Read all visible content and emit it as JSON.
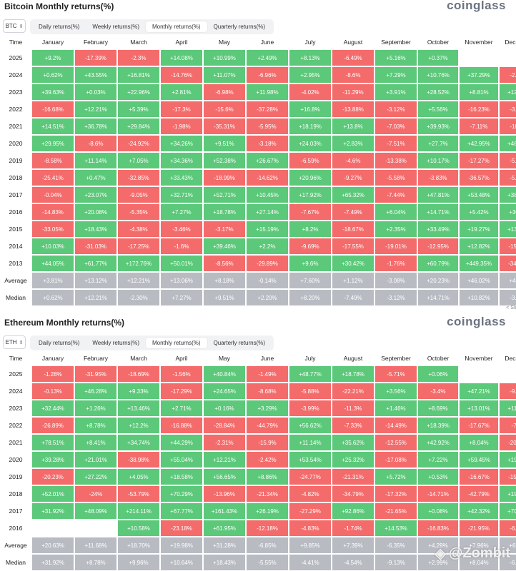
{
  "btc": {
    "title": "Bitcoin Monthly returns(%)",
    "brand": "coinglass",
    "coin": "BTC",
    "tabs": [
      "Daily returns(%)",
      "Weekly returns(%)",
      "Monthly returns(%)",
      "Quarterly returns(%)"
    ],
    "active_tab": 2,
    "header": [
      "Time",
      "January",
      "February",
      "March",
      "April",
      "May",
      "June",
      "July",
      "August",
      "September",
      "October",
      "November",
      "December"
    ],
    "rows": [
      {
        "label": "2025",
        "values": [
          "+9.2%",
          "-17.39%",
          "-2.3%",
          "+14.08%",
          "+10.99%",
          "+2.49%",
          "+8.13%",
          "-6.49%",
          "+5.16%",
          "+0.37%",
          "",
          ""
        ]
      },
      {
        "label": "2024",
        "values": [
          "+0.62%",
          "+43.55%",
          "+16.81%",
          "-14.76%",
          "+11.07%",
          "-6.96%",
          "+2.95%",
          "-8.6%",
          "+7.29%",
          "+10.76%",
          "+37.29%",
          "-2.85%"
        ]
      },
      {
        "label": "2023",
        "values": [
          "+39.63%",
          "+0.03%",
          "+22.96%",
          "+2.81%",
          "-6.98%",
          "+11.98%",
          "-4.02%",
          "-11.29%",
          "+3.91%",
          "+28.52%",
          "+8.81%",
          "+12.18%"
        ]
      },
      {
        "label": "2022",
        "values": [
          "-16.68%",
          "+12.21%",
          "+5.39%",
          "-17.3%",
          "-15.6%",
          "-37.28%",
          "+16.8%",
          "-13.88%",
          "-3.12%",
          "+5.56%",
          "-16.23%",
          "-3.59%"
        ]
      },
      {
        "label": "2021",
        "values": [
          "+14.51%",
          "+36.78%",
          "+29.84%",
          "-1.98%",
          "-35.31%",
          "-5.95%",
          "+18.19%",
          "+13.8%",
          "-7.03%",
          "+39.93%",
          "-7.11%",
          "-18.9%"
        ]
      },
      {
        "label": "2020",
        "values": [
          "+29.95%",
          "-8.6%",
          "-24.92%",
          "+34.26%",
          "+9.51%",
          "-3.18%",
          "+24.03%",
          "+2.83%",
          "-7.51%",
          "+27.7%",
          "+42.95%",
          "+46.92%"
        ]
      },
      {
        "label": "2019",
        "values": [
          "-8.58%",
          "+11.14%",
          "+7.05%",
          "+34.36%",
          "+52.38%",
          "+26.67%",
          "-6.59%",
          "-4.6%",
          "-13.38%",
          "+10.17%",
          "-17.27%",
          "-5.15%"
        ]
      },
      {
        "label": "2018",
        "values": [
          "-25.41%",
          "+0.47%",
          "-32.85%",
          "+33.43%",
          "-18.99%",
          "-14.62%",
          "+20.96%",
          "-9.27%",
          "-5.58%",
          "-3.83%",
          "-36.57%",
          "-5.15%"
        ]
      },
      {
        "label": "2017",
        "values": [
          "-0.04%",
          "+23.07%",
          "-9.05%",
          "+32.71%",
          "+52.71%",
          "+10.45%",
          "+17.92%",
          "+65.32%",
          "-7.44%",
          "+47.81%",
          "+53.48%",
          "+38.89%"
        ]
      },
      {
        "label": "2016",
        "values": [
          "-14.83%",
          "+20.08%",
          "-5.35%",
          "+7.27%",
          "+18.78%",
          "+27.14%",
          "-7.67%",
          "-7.49%",
          "+6.04%",
          "+14.71%",
          "+5.42%",
          "+30.8%"
        ]
      },
      {
        "label": "2015",
        "values": [
          "-33.05%",
          "+18.43%",
          "-4.38%",
          "-3.46%",
          "-3.17%",
          "+15.19%",
          "+8.2%",
          "-18.67%",
          "+2.35%",
          "+33.49%",
          "+19.27%",
          "+13.83%"
        ]
      },
      {
        "label": "2014",
        "values": [
          "+10.03%",
          "-31.03%",
          "-17.25%",
          "-1.6%",
          "+39.46%",
          "+2.2%",
          "-9.69%",
          "-17.55%",
          "-19.01%",
          "-12.95%",
          "+12.82%",
          "-15.11%"
        ]
      },
      {
        "label": "2013",
        "values": [
          "+44.05%",
          "+61.77%",
          "+172.76%",
          "+50.01%",
          "-8.56%",
          "-29.89%",
          "+9.6%",
          "+30.42%",
          "-1.76%",
          "+60.79%",
          "+449.35%",
          "-34.81%"
        ]
      }
    ],
    "stats": [
      {
        "label": "Average",
        "values": [
          "+3.81%",
          "+13.12%",
          "+12.21%",
          "+13.06%",
          "+8.18%",
          "-0.14%",
          "+7.60%",
          "+1.12%",
          "-3.08%",
          "+20.23%",
          "+46.02%",
          "+4.75%"
        ]
      },
      {
        "label": "Median",
        "values": [
          "+0.62%",
          "+12.21%",
          "-2.30%",
          "+7.27%",
          "+9.51%",
          "+2.20%",
          "+8.20%",
          "-7.49%",
          "-3.12%",
          "+14.71%",
          "+10.82%",
          "-3.22%"
        ]
      }
    ],
    "corner_note": "< Sli"
  },
  "eth": {
    "title": "Ethereum Monthly returns(%)",
    "brand": "coinglass",
    "coin": "ETH",
    "tabs": [
      "Daily returns(%)",
      "Weekly returns(%)",
      "Monthly returns(%)",
      "Quarterly returns(%)"
    ],
    "active_tab": 2,
    "header": [
      "Time",
      "January",
      "February",
      "March",
      "April",
      "May",
      "June",
      "July",
      "August",
      "September",
      "October",
      "November",
      "December"
    ],
    "rows": [
      {
        "label": "2025",
        "values": [
          "-1.28%",
          "-31.95%",
          "-18.69%",
          "-1.56%",
          "+40.84%",
          "-1.49%",
          "+48.77%",
          "+18.78%",
          "-5.71%",
          "+0.06%",
          "",
          ""
        ]
      },
      {
        "label": "2024",
        "values": [
          "-0.13%",
          "+46.28%",
          "+9.33%",
          "-17.29%",
          "+24.65%",
          "-8.68%",
          "-5.88%",
          "-22.21%",
          "+3.56%",
          "-3.4%",
          "+47.21%",
          "-9.75%"
        ]
      },
      {
        "label": "2023",
        "values": [
          "+32.44%",
          "+1.26%",
          "+13.46%",
          "+2.71%",
          "+0.16%",
          "+3.29%",
          "-3.99%",
          "-11.3%",
          "+1.46%",
          "+8.69%",
          "+13.01%",
          "+11.31%"
        ]
      },
      {
        "label": "2022",
        "values": [
          "-26.89%",
          "+8.78%",
          "+12.2%",
          "-16.88%",
          "-28.84%",
          "-44.79%",
          "+56.62%",
          "-7.33%",
          "-14.49%",
          "+18.39%",
          "-17.67%",
          "-7.6%"
        ]
      },
      {
        "label": "2021",
        "values": [
          "+78.51%",
          "+8.41%",
          "+34.74%",
          "+44.29%",
          "-2.31%",
          "-15.9%",
          "+11.14%",
          "+35.62%",
          "-12.55%",
          "+42.92%",
          "+8.04%",
          "-20.61%"
        ]
      },
      {
        "label": "2020",
        "values": [
          "+39.28%",
          "+21.01%",
          "-38.98%",
          "+55.04%",
          "+12.21%",
          "-2.42%",
          "+53.54%",
          "+25.32%",
          "-17.08%",
          "+7.22%",
          "+59.45%",
          "+19.46%"
        ]
      },
      {
        "label": "2019",
        "values": [
          "-20.23%",
          "+27.22%",
          "+4.05%",
          "+18.58%",
          "+56.65%",
          "+8.86%",
          "-24.77%",
          "-21.31%",
          "+5.72%",
          "+0.53%",
          "-16.67%",
          "-15.09%"
        ]
      },
      {
        "label": "2018",
        "values": [
          "+52.01%",
          "-24%",
          "-53.79%",
          "+70.29%",
          "-13.96%",
          "-21.34%",
          "-4.82%",
          "-34.79%",
          "-17.32%",
          "-14.71%",
          "-42.79%",
          "+19.68%"
        ]
      },
      {
        "label": "2017",
        "values": [
          "+31.92%",
          "+48.09%",
          "+214.11%",
          "+67.77%",
          "+161.43%",
          "+26.19%",
          "-27.29%",
          "+92.86%",
          "-21.65%",
          "+0.08%",
          "+42.32%",
          "+70.54%"
        ]
      },
      {
        "label": "2016",
        "values": [
          "",
          "",
          "+10.58%",
          "-23.18%",
          "+61.95%",
          "-12.18%",
          "-4.83%",
          "-1.74%",
          "+14.53%",
          "-16.83%",
          "-21.95%",
          "-6.32%"
        ]
      }
    ],
    "stats": [
      {
        "label": "Average",
        "values": [
          "+20.63%",
          "+11.68%",
          "+18.70%",
          "+19.98%",
          "+31.28%",
          "-6.85%",
          "+9.85%",
          "+7.39%",
          "-6.35%",
          "+4.29%",
          "+7.96%",
          "+6.25%"
        ]
      },
      {
        "label": "Median",
        "values": [
          "+31.92%",
          "+8.78%",
          "+9.96%",
          "+10.64%",
          "+18.43%",
          "-5.55%",
          "-4.41%",
          "-4.54%",
          "-9.13%",
          "+2.99%",
          "+8.04%",
          "-6.32%"
        ]
      }
    ]
  },
  "watermark": "@Zombit",
  "colors": {
    "positive": "#5cc87a",
    "negative": "#f46b6b",
    "stat": "#b8bcc2"
  }
}
